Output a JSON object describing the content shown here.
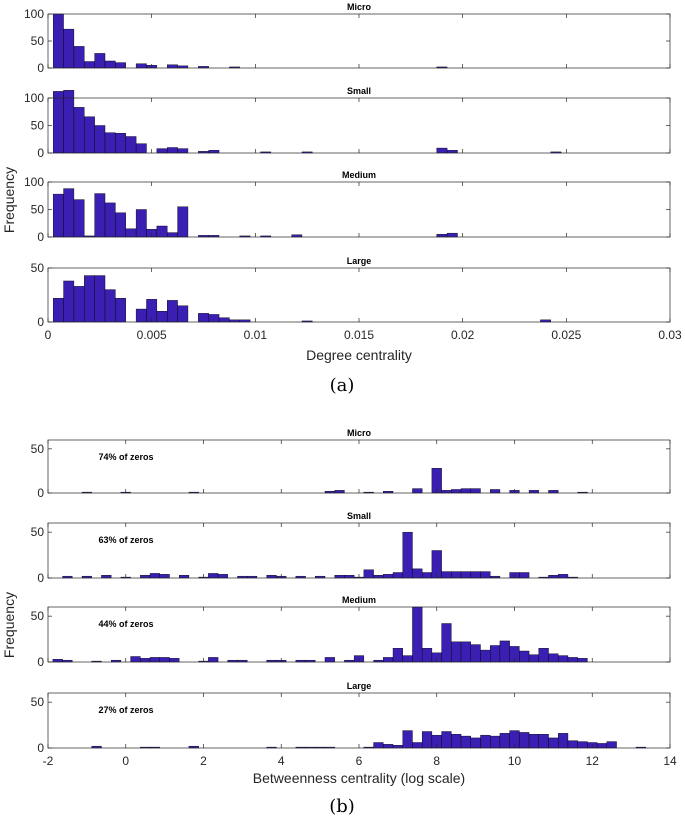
{
  "chart_data": [
    {
      "type": "bar",
      "id": "a",
      "caption": "(a)",
      "xlabel": "Degree centrality",
      "ylabel": "Frequency",
      "xlim": [
        0,
        0.03
      ],
      "xticks": [
        0,
        0.005,
        0.01,
        0.015,
        0.02,
        0.025,
        0.03
      ],
      "xtick_labels": [
        "0",
        "0.005",
        "0.01",
        "0.015",
        "0.02",
        "0.025",
        "0.03"
      ],
      "bin_width": 0.0005,
      "bar_color": "#3b1fb3",
      "panels": [
        {
          "title": "Micro",
          "ylim": [
            0,
            100
          ],
          "yticks": [
            0,
            50,
            100
          ],
          "x": [
            0.0005,
            0.001,
            0.0015,
            0.002,
            0.0025,
            0.003,
            0.0035,
            0.0045,
            0.005,
            0.006,
            0.0065,
            0.0075,
            0.009,
            0.019
          ],
          "values": [
            100,
            72,
            40,
            12,
            27,
            13,
            10,
            8,
            5,
            6,
            4,
            3,
            2,
            2
          ]
        },
        {
          "title": "Small",
          "ylim": [
            0,
            100
          ],
          "yticks": [
            0,
            50,
            100
          ],
          "x": [
            0.0005,
            0.001,
            0.0015,
            0.002,
            0.0025,
            0.003,
            0.0035,
            0.004,
            0.0045,
            0.0055,
            0.006,
            0.0065,
            0.0075,
            0.008,
            0.0105,
            0.0125,
            0.019,
            0.0195,
            0.0245
          ],
          "values": [
            112,
            114,
            83,
            66,
            50,
            37,
            36,
            30,
            17,
            8,
            10,
            8,
            3,
            5,
            2,
            2,
            9,
            5,
            2
          ]
        },
        {
          "title": "Medium",
          "ylim": [
            0,
            100
          ],
          "yticks": [
            0,
            50,
            100
          ],
          "x": [
            0.0005,
            0.001,
            0.0015,
            0.002,
            0.0025,
            0.003,
            0.0035,
            0.004,
            0.0045,
            0.005,
            0.0055,
            0.006,
            0.0065,
            0.0075,
            0.008,
            0.0095,
            0.0105,
            0.012,
            0.019,
            0.0195
          ],
          "values": [
            78,
            88,
            68,
            2,
            79,
            62,
            44,
            15,
            50,
            14,
            20,
            8,
            55,
            3,
            3,
            2,
            2,
            4,
            5,
            7
          ]
        },
        {
          "title": "Large",
          "ylim": [
            0,
            50
          ],
          "yticks": [
            0,
            50
          ],
          "x": [
            0.0005,
            0.001,
            0.0015,
            0.002,
            0.0025,
            0.003,
            0.0035,
            0.0045,
            0.005,
            0.0055,
            0.006,
            0.0065,
            0.0075,
            0.008,
            0.0085,
            0.009,
            0.0095,
            0.0125,
            0.024
          ],
          "values": [
            22,
            38,
            33,
            43,
            43,
            30,
            22,
            12,
            21,
            10,
            20,
            15,
            8,
            7,
            4,
            2,
            2,
            1,
            2
          ]
        }
      ]
    },
    {
      "type": "bar",
      "id": "b",
      "caption": "(b)",
      "xlabel": "Betweenness centrality (log scale)",
      "ylabel": "Frequency",
      "xlim": [
        -2,
        14
      ],
      "xticks": [
        -2,
        0,
        2,
        4,
        6,
        8,
        10,
        12,
        14
      ],
      "xtick_labels": [
        "-2",
        "0",
        "2",
        "4",
        "6",
        "8",
        "10",
        "12",
        "14"
      ],
      "bin_width": 0.25,
      "bar_color": "#3b1fb3",
      "panels": [
        {
          "title": "Micro",
          "annotation": "74% of zeros",
          "ylim": [
            0,
            60
          ],
          "yticks": [
            0,
            50
          ],
          "x": [
            -1,
            0,
            1.75,
            5.25,
            5.5,
            6.25,
            6.75,
            7.5,
            8,
            8.25,
            8.5,
            8.75,
            9,
            9.5,
            10,
            10.5,
            11,
            11.75
          ],
          "values": [
            1,
            1,
            1,
            2,
            3,
            1,
            2,
            5,
            28,
            3,
            4,
            5,
            5,
            4,
            3,
            3,
            3,
            1
          ]
        },
        {
          "title": "Small",
          "annotation": "63% of zeros",
          "ylim": [
            0,
            60
          ],
          "yticks": [
            0,
            50
          ],
          "x": [
            -1.5,
            -1,
            -0.5,
            0,
            0.5,
            0.75,
            1,
            1.5,
            2,
            2.25,
            2.5,
            3,
            3.25,
            3.75,
            4,
            4.5,
            5,
            5.5,
            5.75,
            6,
            6.25,
            6.5,
            6.75,
            7,
            7.25,
            7.5,
            7.75,
            8,
            8.25,
            8.5,
            8.75,
            9,
            9.25,
            9.5,
            10,
            10.25,
            10.75,
            11,
            11.25,
            11.5
          ],
          "values": [
            2,
            2,
            3,
            1,
            3,
            5,
            4,
            3,
            1,
            5,
            4,
            2,
            2,
            3,
            2,
            2,
            2,
            3,
            3,
            1,
            9,
            3,
            4,
            6,
            50,
            10,
            6,
            30,
            7,
            7,
            7,
            7,
            7,
            2,
            6,
            6,
            1,
            3,
            4,
            1
          ]
        },
        {
          "title": "Medium",
          "annotation": "44% of zeros",
          "ylim": [
            0,
            60
          ],
          "yticks": [
            0,
            50
          ],
          "x": [
            -1.75,
            -1.5,
            -0.75,
            -0.25,
            0.25,
            0.5,
            0.75,
            1,
            1.25,
            2,
            2.25,
            2.75,
            3,
            3.75,
            4,
            4.5,
            4.75,
            5.25,
            5.75,
            6,
            6.5,
            6.75,
            7,
            7.25,
            7.5,
            7.75,
            8,
            8.25,
            8.5,
            8.75,
            9,
            9.25,
            9.5,
            9.75,
            10,
            10.25,
            10.5,
            10.75,
            11,
            11.25,
            11.5,
            11.75
          ],
          "values": [
            3,
            2,
            1,
            2,
            6,
            4,
            5,
            5,
            4,
            1,
            5,
            2,
            2,
            2,
            2,
            2,
            2,
            5,
            2,
            7,
            2,
            5,
            15,
            7,
            60,
            15,
            10,
            42,
            22,
            22,
            19,
            13,
            18,
            23,
            17,
            12,
            8,
            15,
            9,
            7,
            5,
            4
          ]
        },
        {
          "title": "Large",
          "annotation": "27% of zeros",
          "ylim": [
            0,
            60
          ],
          "yticks": [
            0,
            50
          ],
          "x": [
            -0.75,
            0.5,
            0.75,
            1.75,
            3.75,
            4.5,
            4.75,
            5,
            5.25,
            6.25,
            6.5,
            6.75,
            7,
            7.25,
            7.5,
            7.75,
            8,
            8.25,
            8.5,
            8.75,
            9,
            9.25,
            9.5,
            9.75,
            10,
            10.25,
            10.5,
            10.75,
            11,
            11.25,
            11.5,
            11.75,
            12,
            12.25,
            12.5,
            13.25
          ],
          "values": [
            2,
            1,
            1,
            2,
            1,
            1,
            1,
            1,
            1,
            1,
            6,
            4,
            3,
            19,
            6,
            18,
            14,
            18,
            15,
            13,
            11,
            14,
            13,
            16,
            19,
            17,
            15,
            15,
            11,
            16,
            8,
            7,
            6,
            5,
            7,
            1
          ]
        }
      ]
    }
  ]
}
